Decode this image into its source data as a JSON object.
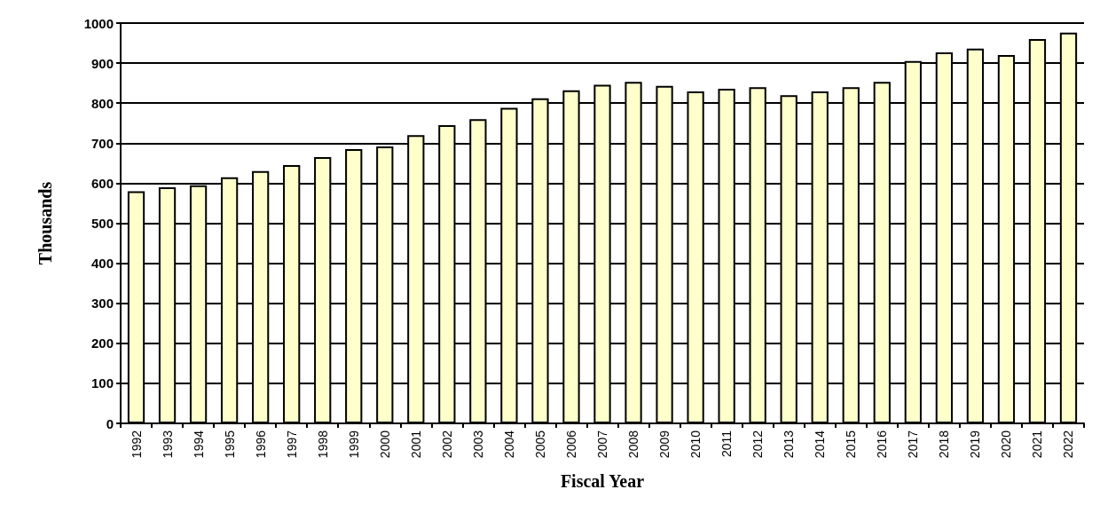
{
  "chart_data": {
    "type": "bar",
    "xlabel": "Fiscal Year",
    "ylabel": "Thousands",
    "categories": [
      "1992",
      "1993",
      "1994",
      "1995",
      "1996",
      "1997",
      "1998",
      "1999",
      "2000",
      "2001",
      "2002",
      "2003",
      "2004",
      "2005",
      "2006",
      "2007",
      "2008",
      "2009",
      "2010",
      "2011",
      "2012",
      "2013",
      "2014",
      "2015",
      "2016",
      "2017",
      "2018",
      "2019",
      "2020",
      "2021",
      "2022"
    ],
    "values": [
      580,
      590,
      595,
      615,
      630,
      645,
      665,
      685,
      692,
      720,
      745,
      760,
      788,
      812,
      832,
      846,
      853,
      843,
      829,
      836,
      840,
      820,
      829,
      840,
      853,
      905,
      927,
      936,
      920,
      960,
      976
    ],
    "color": "#ffffcc",
    "ylim": [
      0,
      1000
    ],
    "yticks": [
      0,
      100,
      200,
      300,
      400,
      500,
      600,
      700,
      800,
      900,
      1000
    ],
    "grid": "y"
  }
}
